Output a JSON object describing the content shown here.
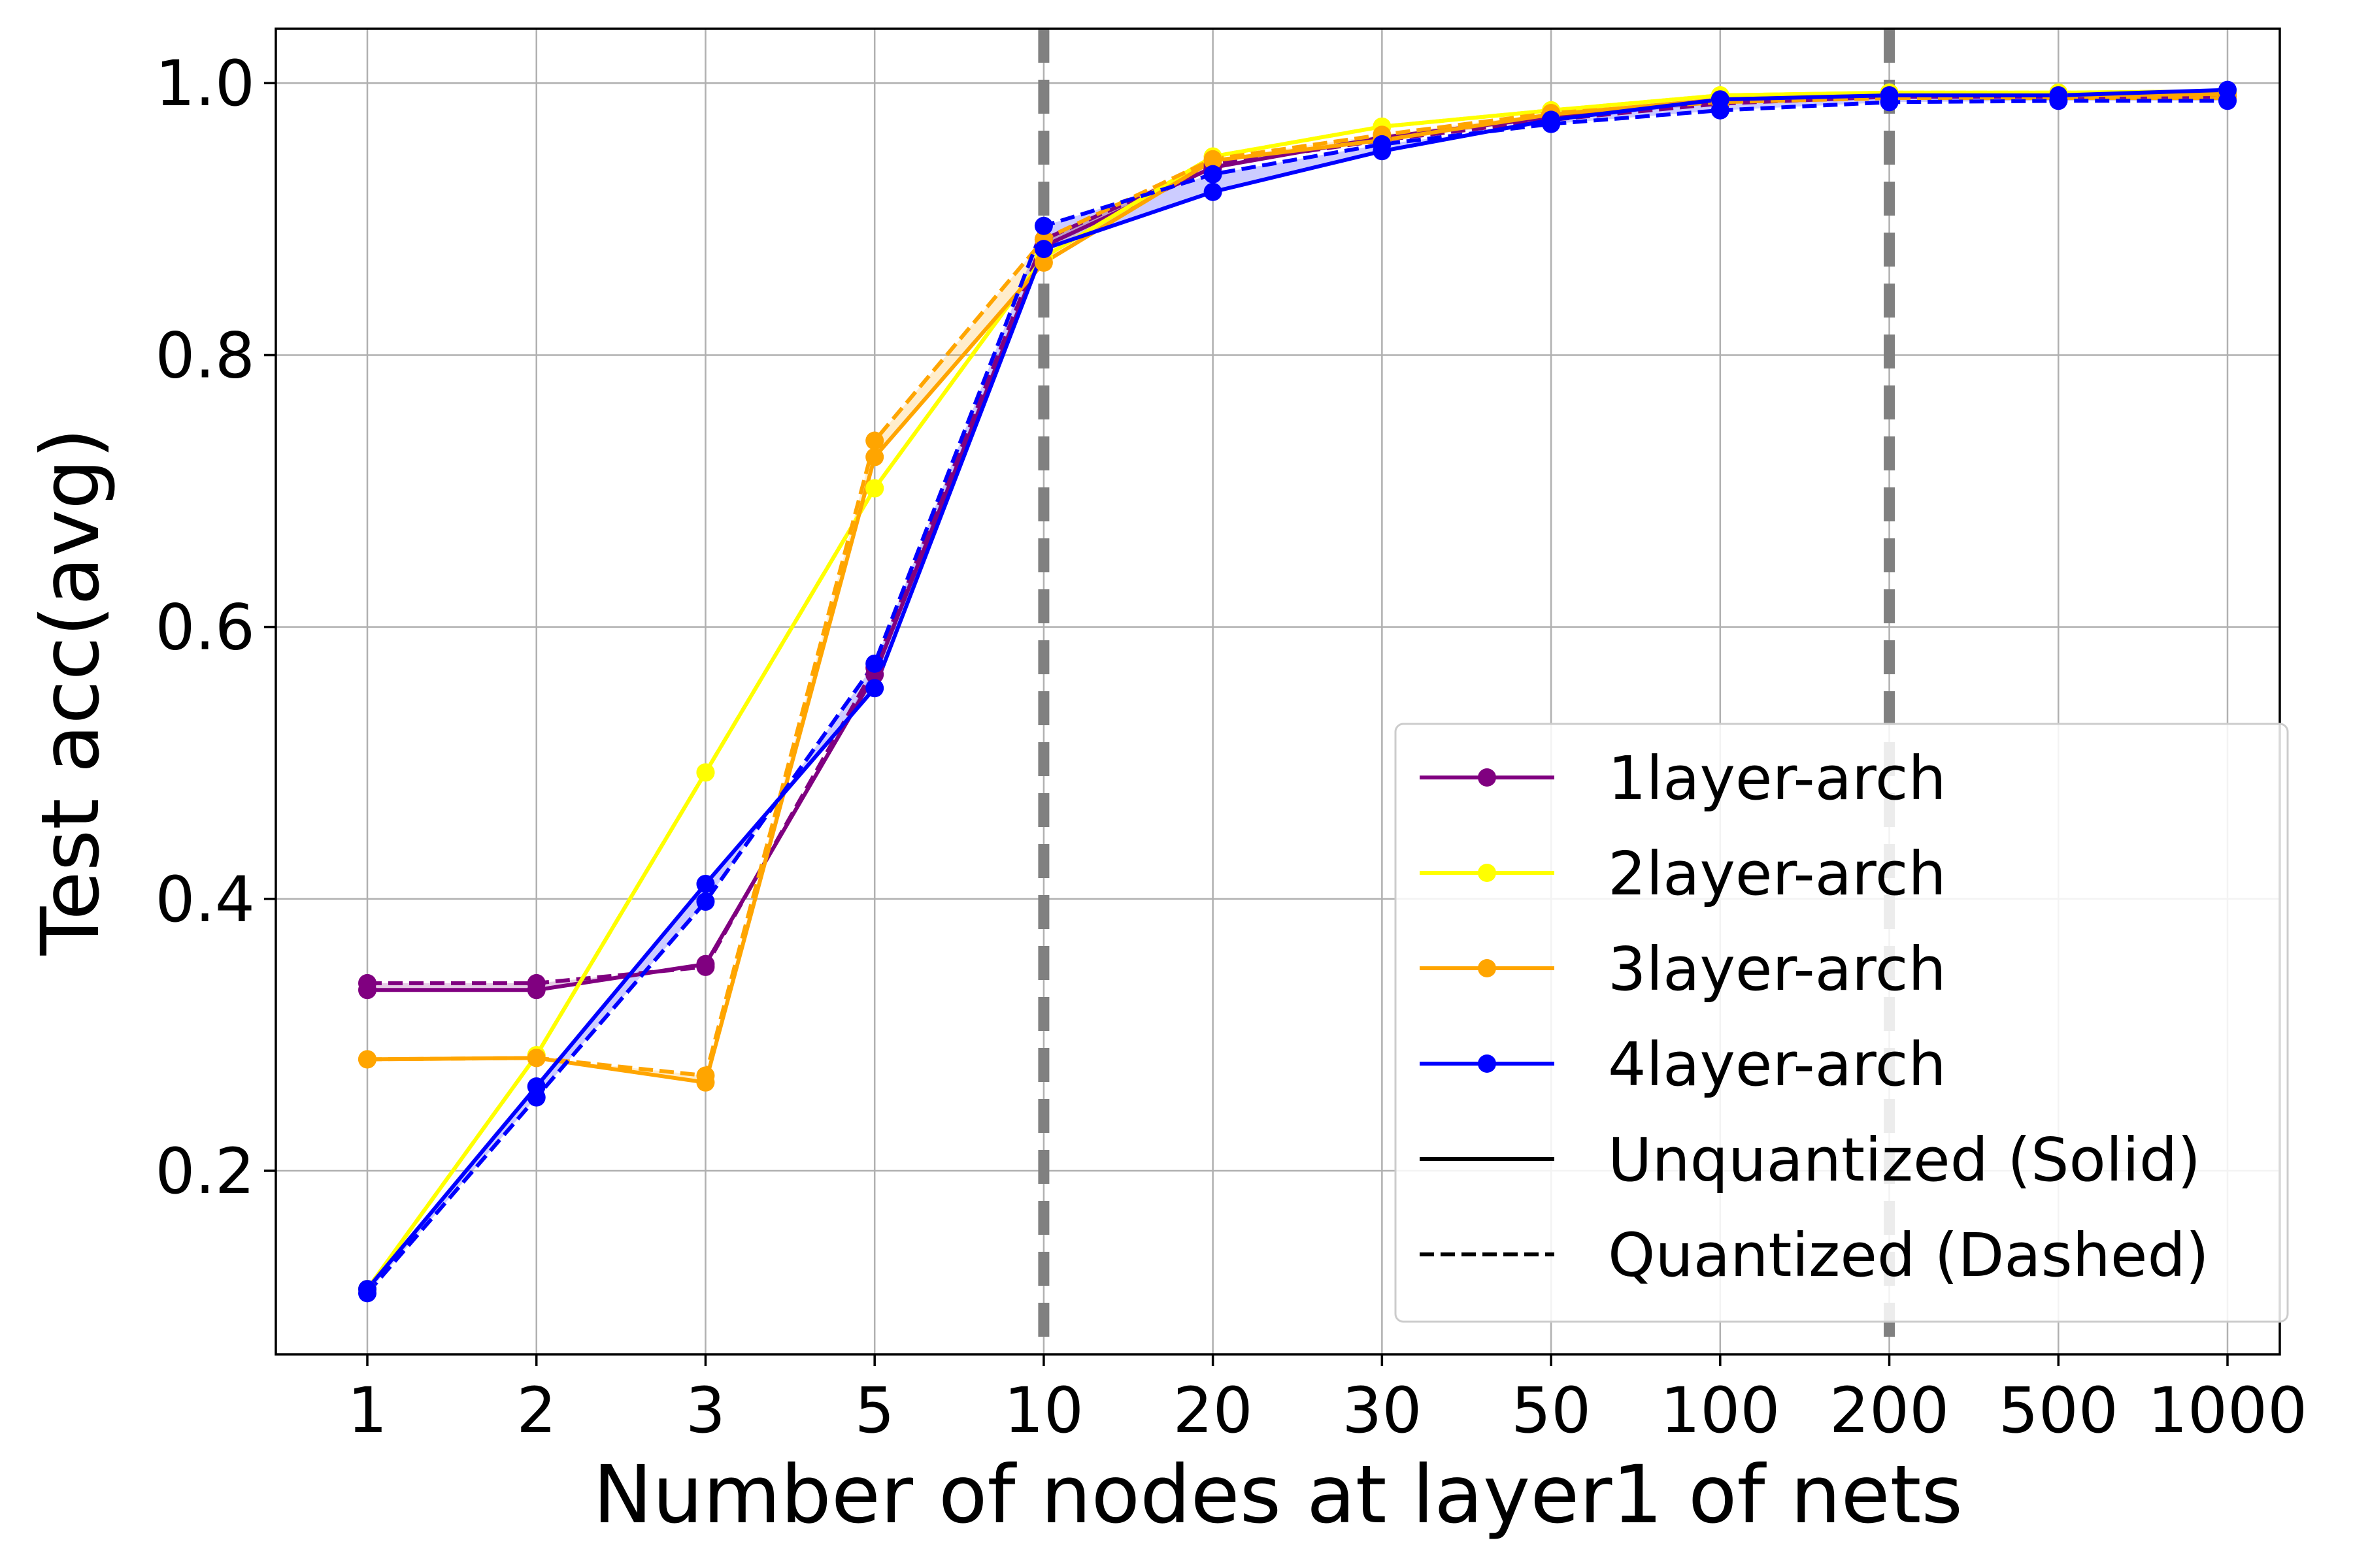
{
  "chart_data": {
    "type": "line",
    "title": "",
    "xlabel": "Number of nodes at layer1 of nets",
    "ylabel": "Test acc(avg)",
    "categories": [
      "1",
      "2",
      "3",
      "5",
      "10",
      "20",
      "30",
      "50",
      "100",
      "200",
      "500",
      "1000"
    ],
    "yticks": [
      "0.2",
      "0.4",
      "0.6",
      "0.8",
      "1.0"
    ],
    "ylim": [
      0.065,
      1.04
    ],
    "grid": true,
    "vlines_at_categories": [
      "10",
      "200"
    ],
    "legend_position": "lower-right",
    "series": [
      {
        "name": "1layer-arch",
        "color": "#800080",
        "style": "solid",
        "values": [
          0.333,
          0.333,
          0.352,
          0.565,
          0.88,
          0.938,
          0.96,
          0.975,
          0.988,
          0.992,
          0.992,
          0.993
        ]
      },
      {
        "name": "1layer-arch",
        "color": "#800080",
        "style": "dashed",
        "legend": false,
        "values": [
          0.338,
          0.338,
          0.35,
          0.57,
          0.885,
          0.94,
          0.958,
          0.973,
          0.985,
          0.99,
          0.99,
          0.99
        ]
      },
      {
        "name": "2layer-arch",
        "color": "#ffff00",
        "style": "solid",
        "values": [
          0.113,
          0.285,
          0.493,
          0.702,
          0.872,
          0.946,
          0.968,
          0.98,
          0.991,
          0.993,
          0.993,
          0.994
        ]
      },
      {
        "name": "2layer-arch",
        "color": "#ffff00",
        "style": "dashed",
        "legend": false,
        "values": [
          0.113,
          0.285,
          0.493,
          0.702,
          0.872,
          0.946,
          0.968,
          0.98,
          0.991,
          0.993,
          0.993,
          0.994
        ]
      },
      {
        "name": "3layer-arch",
        "color": "#ffa500",
        "style": "solid",
        "values": [
          0.282,
          0.283,
          0.265,
          0.725,
          0.868,
          0.943,
          0.958,
          0.977,
          0.988,
          0.991,
          0.991,
          0.992
        ]
      },
      {
        "name": "3layer-arch",
        "color": "#ffa500",
        "style": "dashed",
        "legend": false,
        "values": [
          0.282,
          0.283,
          0.27,
          0.737,
          0.885,
          0.944,
          0.962,
          0.978,
          0.986,
          0.989,
          0.989,
          0.989
        ]
      },
      {
        "name": "4layer-arch",
        "color": "#0000ff",
        "style": "solid",
        "values": [
          0.113,
          0.262,
          0.411,
          0.555,
          0.878,
          0.92,
          0.95,
          0.973,
          0.988,
          0.991,
          0.991,
          0.995
        ]
      },
      {
        "name": "4layer-arch",
        "color": "#0000ff",
        "style": "dashed",
        "legend": false,
        "values": [
          0.11,
          0.254,
          0.398,
          0.573,
          0.895,
          0.933,
          0.955,
          0.97,
          0.98,
          0.986,
          0.987,
          0.987
        ]
      }
    ],
    "legend_extra": [
      {
        "name": "Unquantized (Solid)",
        "color": "#000000",
        "style": "solid"
      },
      {
        "name": "Quantized (Dashed)",
        "color": "#000000",
        "style": "dashed"
      }
    ]
  }
}
